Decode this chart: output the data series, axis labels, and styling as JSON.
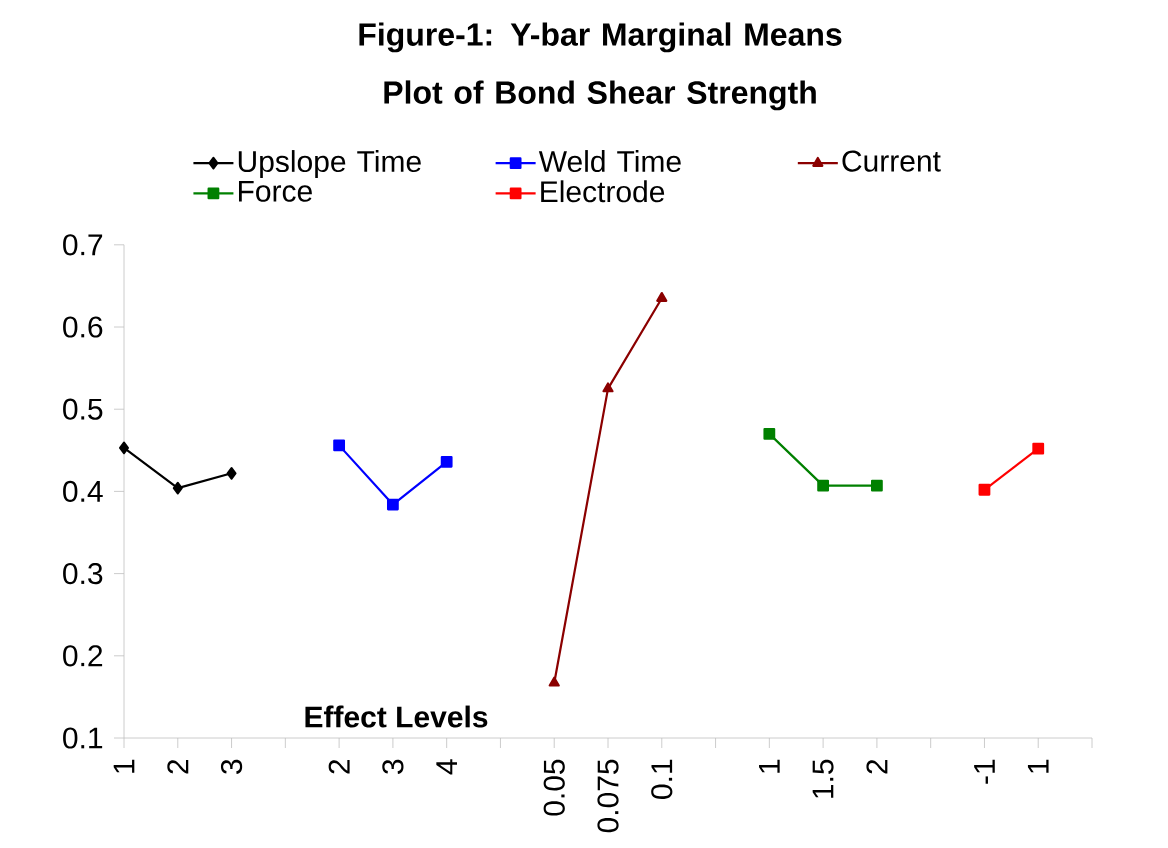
{
  "chart_data": {
    "type": "line",
    "title": "Figure-1:  Y-bar Marginal Means Plot of Bond Shear Strength",
    "xlabel": "Effect Levels",
    "categories": [
      "1",
      "2",
      "3",
      null,
      "2",
      "3",
      "4",
      null,
      "0.05",
      "0.075",
      "0.1",
      null,
      "1",
      "1.5",
      "2",
      null,
      "-1",
      "1",
      null
    ],
    "series": [
      {
        "name": "Upslope Time",
        "color": "#000000",
        "marker": "diamond",
        "values": [
          0.453,
          0.404,
          0.422,
          null,
          null,
          null,
          null,
          null,
          null,
          null,
          null,
          null,
          null,
          null,
          null,
          null,
          null,
          null,
          null
        ]
      },
      {
        "name": "Weld Time",
        "color": "#0000ff",
        "marker": "square",
        "values": [
          null,
          null,
          null,
          null,
          0.456,
          0.384,
          0.436,
          null,
          null,
          null,
          null,
          null,
          null,
          null,
          null,
          null,
          null,
          null,
          null
        ]
      },
      {
        "name": "Current",
        "color": "#8b0000",
        "marker": "triangle",
        "values": [
          null,
          null,
          null,
          null,
          null,
          null,
          null,
          null,
          0.167,
          0.525,
          0.635,
          null,
          null,
          null,
          null,
          null,
          null,
          null,
          null
        ]
      },
      {
        "name": "Force",
        "color": "#008000",
        "marker": "square",
        "values": [
          null,
          null,
          null,
          null,
          null,
          null,
          null,
          null,
          null,
          null,
          null,
          null,
          0.47,
          0.407,
          0.407,
          null,
          null,
          null,
          null
        ]
      },
      {
        "name": "Electrode",
        "color": "#ff0000",
        "marker": "square",
        "values": [
          null,
          null,
          null,
          null,
          null,
          null,
          null,
          null,
          null,
          null,
          null,
          null,
          null,
          null,
          null,
          null,
          0.402,
          0.452,
          null
        ]
      }
    ],
    "ylim": [
      0.1,
      0.7
    ],
    "yticks": [
      0.1,
      0.2,
      0.3,
      0.4,
      0.5,
      0.6,
      0.7
    ],
    "grid": false,
    "legend": "top",
    "line_style": "solid"
  }
}
